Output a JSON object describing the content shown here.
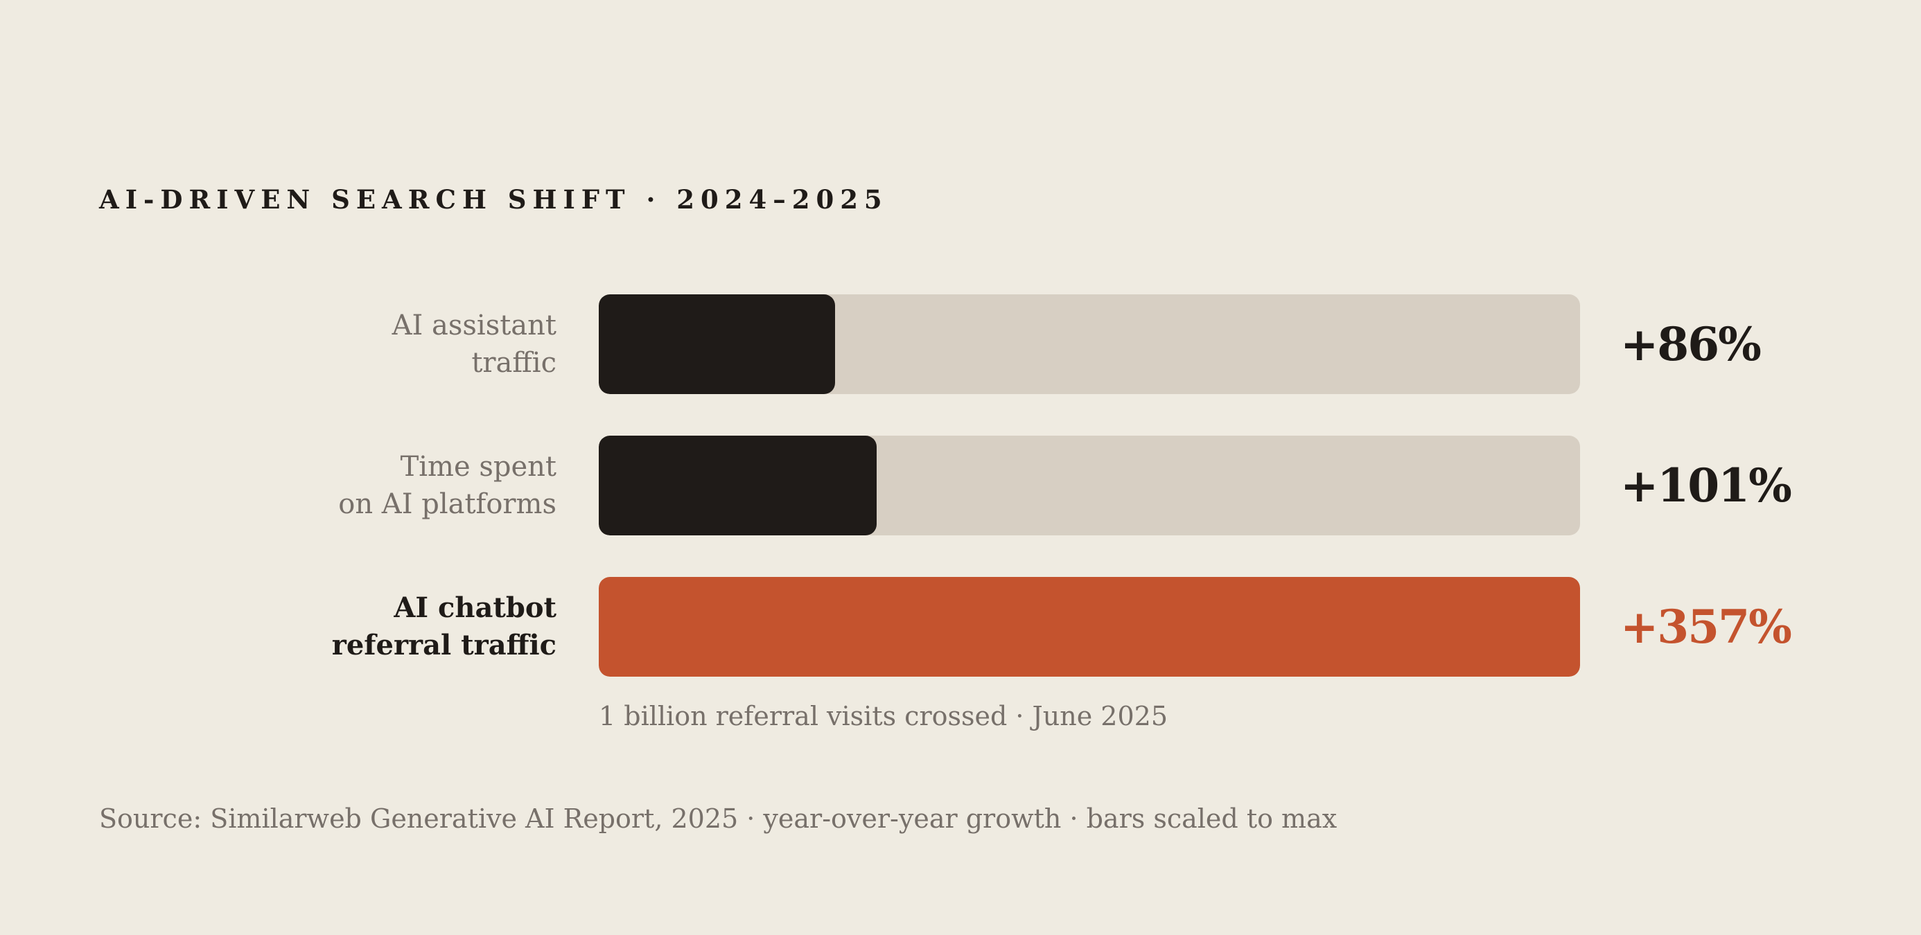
{
  "chart_data": {
    "type": "bar",
    "orientation": "horizontal",
    "title": "AI-DRIVEN SEARCH SHIFT · 2024–2025",
    "unit": "%",
    "max": 357,
    "categories": [
      [
        "AI assistant",
        "traffic"
      ],
      [
        "Time spent",
        "on AI platforms"
      ],
      [
        "AI chatbot",
        "referral traffic"
      ]
    ],
    "values": [
      86,
      101,
      357
    ],
    "value_labels": [
      "+86%",
      "+101%",
      "+357%"
    ],
    "highlight_index": 2,
    "annotation": "1 billion referral visits crossed · June 2025",
    "source": "Source: Similarweb Generative AI Report, 2025 · year-over-year growth · bars scaled to max"
  },
  "colors": {
    "background": "#efebe1",
    "track": "#d7cfc3",
    "bar": "#1f1b18",
    "highlight": "#c4532e",
    "text_primary": "#1f1b18",
    "text_muted": "#77706a"
  }
}
